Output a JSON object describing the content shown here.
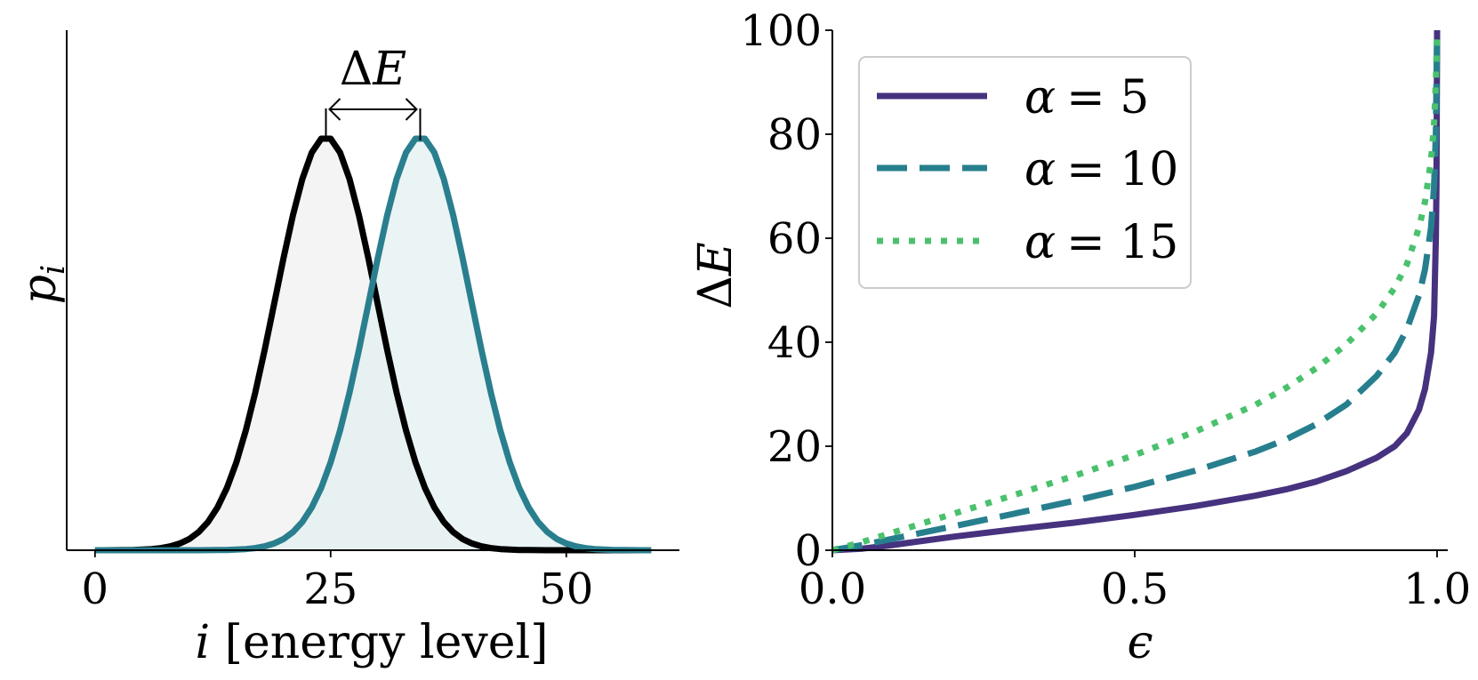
{
  "chart_data": [
    {
      "type": "area",
      "panel": "left",
      "xlabel_var": "i",
      "xlabel_rest": " [energy level]",
      "ylabel_var": "p",
      "ylabel_sub": "i",
      "xlim": [
        -3,
        62
      ],
      "ylim": [
        0,
        1.0
      ],
      "xticks": [
        0,
        25,
        50
      ],
      "yticks_shown": false,
      "series": [
        {
          "color": "#000000",
          "fill": "#f0f0f0",
          "mean": 24.5,
          "sigma": 5.4,
          "peak": 1.0,
          "x_range": [
            0,
            59
          ]
        },
        {
          "color": "#2a7f8e",
          "fill": "#e4f0f2",
          "mean": 34.5,
          "sigma": 5.4,
          "peak": 1.0,
          "x_range": [
            0,
            59
          ]
        }
      ],
      "annotation": {
        "text_main": "Δ",
        "text_var": "E",
        "from_x": 24.5,
        "to_x": 34.5
      }
    },
    {
      "type": "line",
      "panel": "right",
      "xlabel": "ϵ",
      "ylabel_main": "Δ",
      "ylabel_var": "E",
      "xlim": [
        0,
        1.0
      ],
      "ylim": [
        0,
        100
      ],
      "xticks": [
        0.0,
        0.5,
        1.0
      ],
      "xtick_labels": [
        "0.0",
        "0.5",
        "1.0"
      ],
      "yticks": [
        0,
        20,
        40,
        60,
        80,
        100
      ],
      "legend_placement": "upper-left",
      "series": [
        {
          "name_var": "α",
          "name_value": "= 5",
          "color": "#46327e",
          "style": "solid",
          "points": [
            [
              0,
              0
            ],
            [
              0.05,
              0.3
            ],
            [
              0.1,
              1.0
            ],
            [
              0.2,
              2.6
            ],
            [
              0.3,
              4.0
            ],
            [
              0.4,
              5.3
            ],
            [
              0.5,
              6.8
            ],
            [
              0.6,
              8.5
            ],
            [
              0.7,
              10.5
            ],
            [
              0.75,
              11.7
            ],
            [
              0.8,
              13.2
            ],
            [
              0.85,
              15.2
            ],
            [
              0.9,
              17.8
            ],
            [
              0.93,
              20.0
            ],
            [
              0.95,
              22.5
            ],
            [
              0.97,
              27.0
            ],
            [
              0.98,
              31.0
            ],
            [
              0.99,
              38.0
            ],
            [
              0.995,
              45.0
            ],
            [
              0.998,
              60.0
            ],
            [
              0.999,
              70.0
            ],
            [
              1.0,
              100.0
            ]
          ]
        },
        {
          "name_var": "α",
          "name_value": "= 10",
          "color": "#277f8e",
          "style": "dashed",
          "points": [
            [
              0,
              0
            ],
            [
              0.05,
              1.0
            ],
            [
              0.1,
              2.2
            ],
            [
              0.2,
              4.6
            ],
            [
              0.3,
              7.0
            ],
            [
              0.4,
              9.5
            ],
            [
              0.5,
              12.2
            ],
            [
              0.6,
              15.3
            ],
            [
              0.7,
              19.0
            ],
            [
              0.75,
              21.3
            ],
            [
              0.8,
              24.2
            ],
            [
              0.85,
              28.0
            ],
            [
              0.9,
              33.5
            ],
            [
              0.93,
              38.0
            ],
            [
              0.95,
              42.5
            ],
            [
              0.97,
              49.0
            ],
            [
              0.98,
              54.0
            ],
            [
              0.99,
              62.0
            ],
            [
              0.995,
              70.0
            ],
            [
              0.998,
              80.0
            ],
            [
              1.0,
              100.0
            ]
          ]
        },
        {
          "name_var": "α",
          "name_value": "= 15",
          "color": "#4ac16d",
          "style": "dotted",
          "points": [
            [
              0,
              0
            ],
            [
              0.05,
              1.6
            ],
            [
              0.1,
              3.4
            ],
            [
              0.2,
              7.0
            ],
            [
              0.3,
              10.6
            ],
            [
              0.4,
              14.3
            ],
            [
              0.5,
              18.3
            ],
            [
              0.6,
              22.8
            ],
            [
              0.7,
              28.0
            ],
            [
              0.75,
              31.2
            ],
            [
              0.8,
              35.0
            ],
            [
              0.85,
              39.6
            ],
            [
              0.9,
              45.5
            ],
            [
              0.93,
              50.5
            ],
            [
              0.95,
              55.0
            ],
            [
              0.97,
              62.0
            ],
            [
              0.98,
              67.0
            ],
            [
              0.99,
              75.0
            ],
            [
              0.995,
              82.0
            ],
            [
              0.998,
              90.0
            ],
            [
              1.0,
              100.0
            ]
          ]
        }
      ]
    }
  ]
}
